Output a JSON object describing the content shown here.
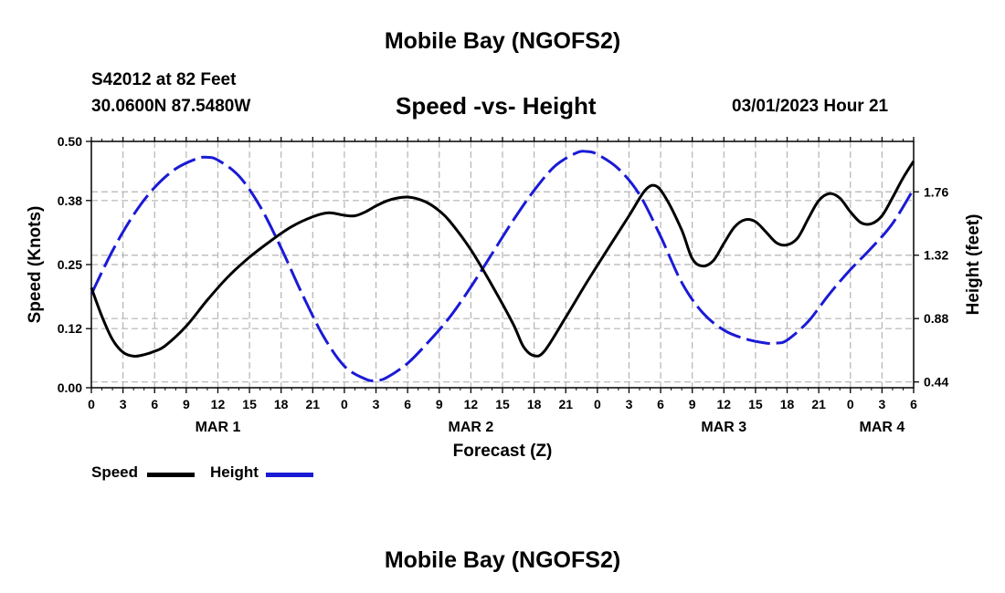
{
  "header": {
    "title": "Mobile Bay (NGOFS2)",
    "station": "S42012 at 82 Feet",
    "coords": "30.0600N  87.5480W",
    "subtitle": "Speed -vs- Height",
    "datetime": "03/01/2023 Hour 21"
  },
  "footer": {
    "title": "Mobile Bay (NGOFS2)"
  },
  "legend": {
    "speed_label": "Speed",
    "height_label": "Height"
  },
  "colors": {
    "speed": "#000000",
    "height": "#1a1ad6",
    "grid": "#b4b4b4"
  },
  "chart_data": {
    "type": "line",
    "title": "Speed -vs- Height",
    "xlabel": "Forecast (Z)",
    "ylabel_left": "Speed (Knots)",
    "ylabel_right": "Height (feet)",
    "x_range_hours": [
      0,
      78
    ],
    "x_tick_labels": [
      "0",
      "3",
      "6",
      "9",
      "12",
      "15",
      "18",
      "21",
      "0",
      "3",
      "6",
      "9",
      "12",
      "15",
      "18",
      "21",
      "0",
      "3",
      "6",
      "9",
      "12",
      "15",
      "18",
      "21",
      "0",
      "3",
      "6"
    ],
    "date_labels": [
      {
        "label": "MAR 1",
        "hour": 12
      },
      {
        "label": "MAR 2",
        "hour": 36
      },
      {
        "label": "MAR 3",
        "hour": 60
      },
      {
        "label": "MAR 4",
        "hour": 75
      }
    ],
    "left_axis": {
      "range": [
        0,
        0.5
      ],
      "ticks": [
        "0.00",
        "0.12",
        "0.25",
        "0.38",
        "0.50"
      ]
    },
    "right_axis": {
      "range": [
        0.4,
        2.11
      ],
      "ticks": [
        "0.44",
        "0.88",
        "1.32",
        "1.76"
      ]
    },
    "grid": true,
    "legend_placement": "bottom-left",
    "series": [
      {
        "name": "Speed",
        "axis": "left",
        "style": "solid",
        "x": [
          0,
          1,
          2,
          3,
          4,
          5,
          6,
          7,
          9,
          11,
          13,
          15,
          17,
          19,
          21,
          22.5,
          24,
          25,
          26,
          27,
          28,
          29,
          30,
          31,
          32,
          33,
          34,
          36,
          38,
          40,
          41,
          42,
          43,
          45,
          47,
          49,
          51,
          52.5,
          53.5,
          54.5,
          56,
          57,
          58,
          59,
          60,
          61,
          62,
          63,
          64,
          65,
          66,
          67,
          68,
          69,
          70,
          71,
          72,
          73,
          74,
          75,
          76,
          77,
          78
        ],
        "y": [
          0.203,
          0.145,
          0.098,
          0.072,
          0.064,
          0.067,
          0.074,
          0.085,
          0.125,
          0.178,
          0.226,
          0.265,
          0.298,
          0.327,
          0.347,
          0.355,
          0.35,
          0.349,
          0.357,
          0.369,
          0.379,
          0.385,
          0.387,
          0.383,
          0.374,
          0.359,
          0.338,
          0.28,
          0.208,
          0.13,
          0.083,
          0.065,
          0.075,
          0.143,
          0.214,
          0.282,
          0.349,
          0.4,
          0.41,
          0.385,
          0.32,
          0.262,
          0.247,
          0.258,
          0.293,
          0.326,
          0.341,
          0.337,
          0.316,
          0.294,
          0.29,
          0.304,
          0.343,
          0.38,
          0.394,
          0.385,
          0.357,
          0.335,
          0.333,
          0.349,
          0.386,
          0.426,
          0.46
        ]
      },
      {
        "name": "Height",
        "axis": "right",
        "style": "dashed",
        "x": [
          0,
          2,
          4,
          6,
          8,
          10,
          11,
          12,
          14,
          16,
          18,
          20,
          22,
          24,
          26,
          27,
          28,
          30,
          32,
          34,
          36,
          38,
          40,
          42,
          44,
          46,
          47,
          48,
          50,
          52,
          54,
          56,
          58,
          60,
          62,
          64,
          65,
          66,
          68,
          70,
          72,
          74,
          76,
          78
        ],
        "y": [
          1.05,
          1.35,
          1.6,
          1.79,
          1.92,
          1.99,
          2.0,
          1.98,
          1.87,
          1.66,
          1.37,
          1.05,
          0.76,
          0.55,
          0.46,
          0.45,
          0.47,
          0.57,
          0.72,
          0.89,
          1.1,
          1.33,
          1.56,
          1.77,
          1.94,
          2.03,
          2.04,
          2.02,
          1.92,
          1.74,
          1.45,
          1.13,
          0.92,
          0.8,
          0.74,
          0.71,
          0.71,
          0.73,
          0.86,
          1.05,
          1.22,
          1.37,
          1.54,
          1.78
        ]
      }
    ]
  }
}
